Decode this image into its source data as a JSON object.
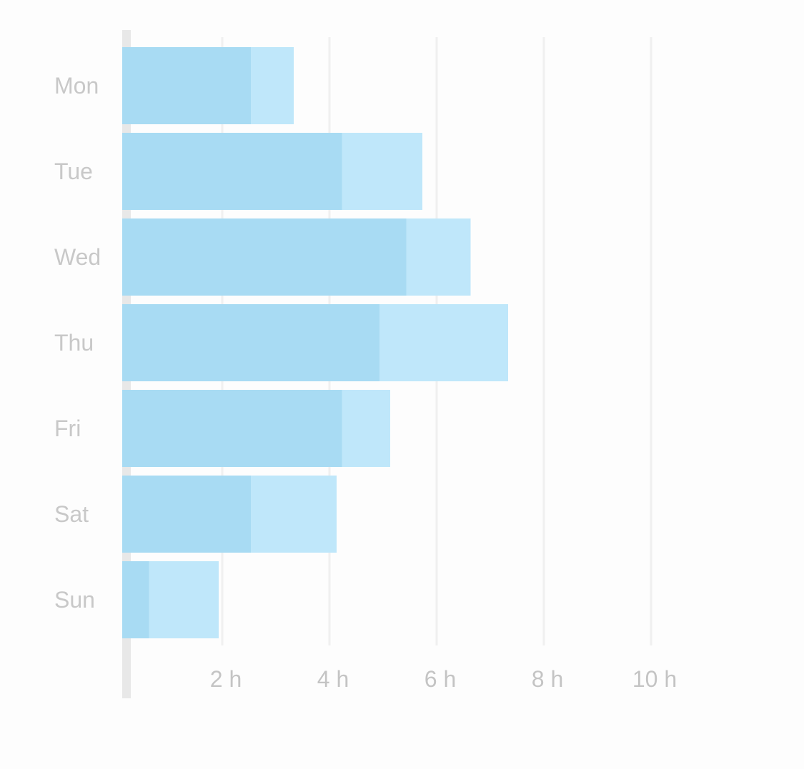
{
  "chart_data": {
    "type": "bar",
    "orientation": "horizontal",
    "stacked": true,
    "categories": [
      "Mon",
      "Tue",
      "Wed",
      "Thu",
      "Fri",
      "Sat",
      "Sun"
    ],
    "series": [
      {
        "values": [
          2.4,
          4.1,
          5.3,
          4.8,
          4.1,
          2.4,
          0.5
        ],
        "color": "#a8dbf3"
      },
      {
        "values": [
          0.8,
          1.5,
          1.2,
          2.4,
          0.9,
          1.6,
          1.3
        ],
        "color": "#bfe7fa"
      }
    ],
    "x_ticks": [
      {
        "value": 2,
        "label": "2 h"
      },
      {
        "value": 4,
        "label": "4 h"
      },
      {
        "value": 6,
        "label": "6 h"
      },
      {
        "value": 8,
        "label": "8 h"
      },
      {
        "value": 10,
        "label": "10 h"
      }
    ],
    "xlim": [
      0,
      12
    ],
    "grid": true,
    "legend": "none",
    "title": "",
    "xlabel": "",
    "ylabel": "",
    "colors": {
      "axis": "#e8e8e8",
      "grid": "#f0f0f0",
      "label": "#c8c8c8"
    }
  }
}
